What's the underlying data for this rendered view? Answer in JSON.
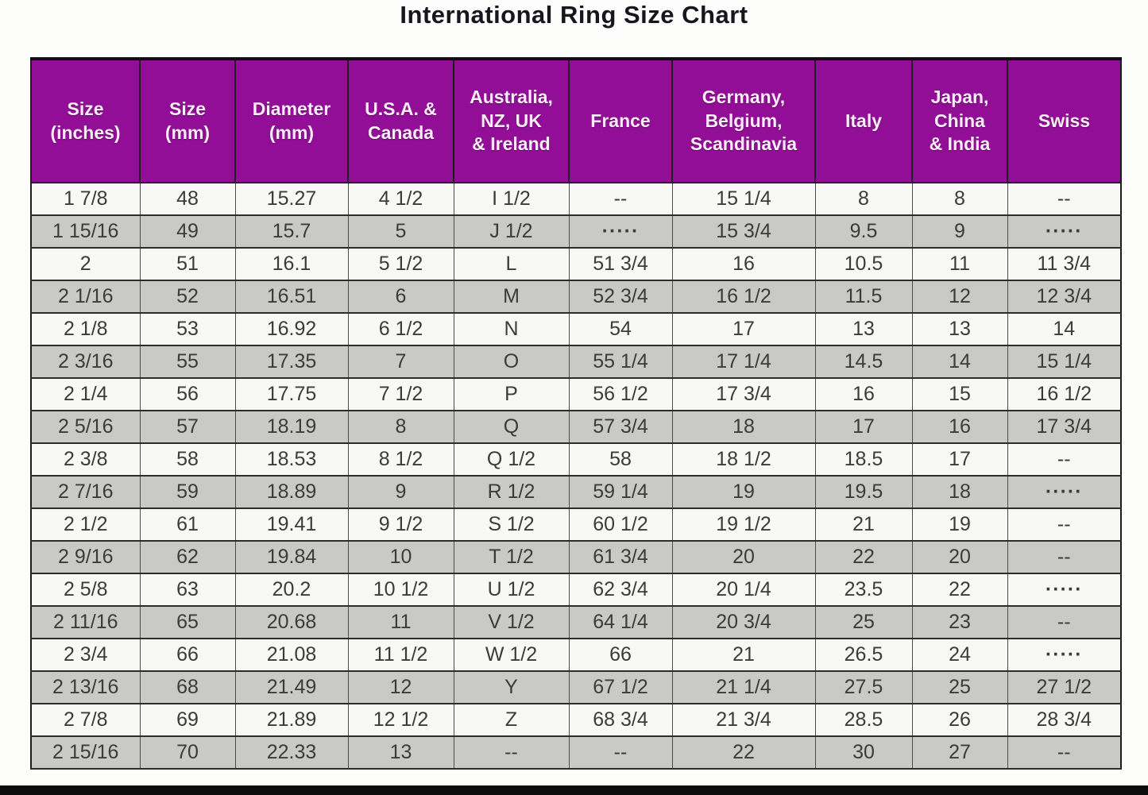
{
  "title": "International Ring Size Chart",
  "colors": {
    "header_bg": "#930e96",
    "header_text": "#ffffff",
    "row_white": "#f8f8f6",
    "row_gray": "#c9c9c7",
    "data_text": "#3b3b3b",
    "bottom_bar": "#0d0d0d"
  },
  "chart_data": {
    "type": "table",
    "title": "International Ring Size Chart",
    "columns": [
      "Size\n(inches)",
      "Size\n(mm)",
      "Diameter\n(mm)",
      "U.S.A. &\nCanada",
      "Australia,\nNZ, UK\n& Ireland",
      "France",
      "Germany,\nBelgium,\nScandinavia",
      "Italy",
      "Japan,\nChina\n& India",
      "Swiss"
    ],
    "rows": [
      [
        "1 7/8",
        "48",
        "15.27",
        "4 1/2",
        "I 1/2",
        "--",
        "15 1/4",
        "8",
        "8",
        "--"
      ],
      [
        "1 15/16",
        "49",
        "15.7",
        "5",
        "J 1/2",
        "·····",
        "15 3/4",
        "9.5",
        "9",
        "·····"
      ],
      [
        "2",
        "51",
        "16.1",
        "5 1/2",
        "L",
        "51 3/4",
        "16",
        "10.5",
        "11",
        "11 3/4"
      ],
      [
        "2 1/16",
        "52",
        "16.51",
        "6",
        "M",
        "52 3/4",
        "16 1/2",
        "11.5",
        "12",
        "12 3/4"
      ],
      [
        "2 1/8",
        "53",
        "16.92",
        "6 1/2",
        "N",
        "54",
        "17",
        "13",
        "13",
        "14"
      ],
      [
        "2 3/16",
        "55",
        "17.35",
        "7",
        "O",
        "55 1/4",
        "17 1/4",
        "14.5",
        "14",
        "15 1/4"
      ],
      [
        "2 1/4",
        "56",
        "17.75",
        "7 1/2",
        "P",
        "56 1/2",
        "17 3/4",
        "16",
        "15",
        "16 1/2"
      ],
      [
        "2 5/16",
        "57",
        "18.19",
        "8",
        "Q",
        "57 3/4",
        "18",
        "17",
        "16",
        "17 3/4"
      ],
      [
        "2 3/8",
        "58",
        "18.53",
        "8 1/2",
        "Q 1/2",
        "58",
        "18 1/2",
        "18.5",
        "17",
        "--"
      ],
      [
        "2 7/16",
        "59",
        "18.89",
        "9",
        "R 1/2",
        "59 1/4",
        "19",
        "19.5",
        "18",
        "·····"
      ],
      [
        "2 1/2",
        "61",
        "19.41",
        "9 1/2",
        "S 1/2",
        "60 1/2",
        "19 1/2",
        "21",
        "19",
        "--"
      ],
      [
        "2 9/16",
        "62",
        "19.84",
        "10",
        "T 1/2",
        "61 3/4",
        "20",
        "22",
        "20",
        "--"
      ],
      [
        "2 5/8",
        "63",
        "20.2",
        "10 1/2",
        "U 1/2",
        "62 3/4",
        "20 1/4",
        "23.5",
        "22",
        "·····"
      ],
      [
        "2 11/16",
        "65",
        "20.68",
        "11",
        "V 1/2",
        "64 1/4",
        "20 3/4",
        "25",
        "23",
        "--"
      ],
      [
        "2 3/4",
        "66",
        "21.08",
        "11 1/2",
        "W 1/2",
        "66",
        "21",
        "26.5",
        "24",
        "·····"
      ],
      [
        "2 13/16",
        "68",
        "21.49",
        "12",
        "Y",
        "67 1/2",
        "21 1/4",
        "27.5",
        "25",
        "27 1/2"
      ],
      [
        "2 7/8",
        "69",
        "21.89",
        "12 1/2",
        "Z",
        "68 3/4",
        "21 3/4",
        "28.5",
        "26",
        "28 3/4"
      ],
      [
        "2 15/16",
        "70",
        "22.33",
        "13",
        "--",
        "--",
        "22",
        "30",
        "27",
        "--"
      ]
    ]
  }
}
